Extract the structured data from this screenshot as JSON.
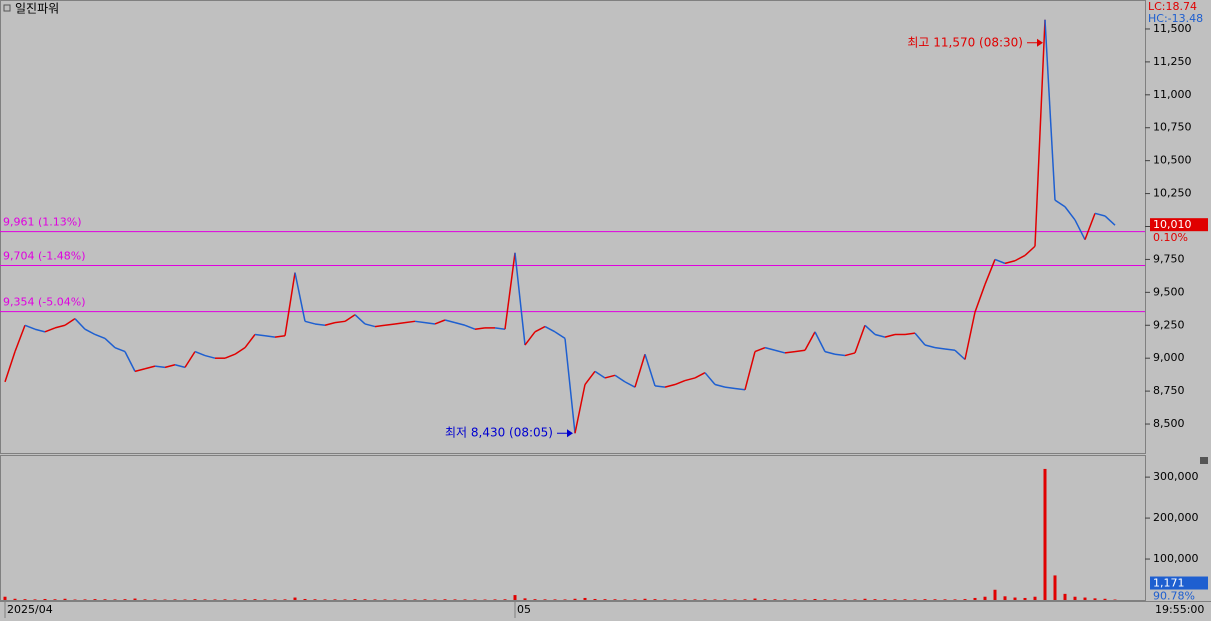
{
  "title": "일진파워",
  "lc_label": "LC:18.74",
  "hc_label": "HC:-13.48",
  "time_label": "19:55:00",
  "chart_data": [
    {
      "type": "line",
      "categories": [
        "2025/04",
        null,
        null,
        null,
        null,
        null,
        null,
        null,
        null,
        null,
        null,
        null,
        null,
        null,
        null,
        null,
        null,
        null,
        null,
        null,
        null,
        null,
        null,
        null,
        null,
        null,
        null,
        null,
        null,
        null,
        null,
        null,
        null,
        null,
        null,
        null,
        null,
        null,
        null,
        null,
        null,
        null,
        null,
        null,
        null,
        null,
        null,
        null,
        null,
        null,
        null,
        "05",
        null,
        null,
        null,
        null,
        null,
        null,
        null,
        null,
        null,
        null,
        null,
        null,
        null,
        null,
        null,
        null,
        null,
        null,
        null,
        null,
        null,
        null,
        null,
        null,
        null,
        null,
        null,
        null,
        null,
        null,
        null,
        null,
        null,
        null,
        null,
        null,
        null,
        null,
        null,
        null,
        null,
        null,
        null,
        null,
        null,
        null,
        null,
        null,
        null,
        null,
        null,
        null,
        null,
        null,
        null,
        null,
        null,
        null,
        null,
        null
      ],
      "values": [
        8820,
        9050,
        9250,
        9220,
        9200,
        9230,
        9250,
        9300,
        9220,
        9180,
        9150,
        9080,
        9050,
        8900,
        8920,
        8940,
        8930,
        8950,
        8930,
        9050,
        9020,
        9000,
        9000,
        9030,
        9080,
        9180,
        9170,
        9160,
        9170,
        9650,
        9280,
        9260,
        9250,
        9270,
        9280,
        9330,
        9260,
        9240,
        9250,
        9260,
        9270,
        9280,
        9270,
        9260,
        9290,
        9270,
        9250,
        9220,
        9230,
        9230,
        9220,
        9800,
        9100,
        9200,
        9240,
        9200,
        9150,
        8430,
        8800,
        8900,
        8850,
        8870,
        8820,
        8780,
        9030,
        8790,
        8780,
        8800,
        8830,
        8850,
        8890,
        8800,
        8780,
        8770,
        8760,
        9050,
        9080,
        9060,
        9040,
        9050,
        9060,
        9200,
        9050,
        9030,
        9020,
        9040,
        9250,
        9180,
        9160,
        9180,
        9180,
        9190,
        9100,
        9080,
        9070,
        9060,
        8990,
        9350,
        9560,
        9750,
        9720,
        9740,
        9780,
        9850,
        11570,
        10200,
        10150,
        10050,
        9900,
        10100,
        10080,
        10010
      ],
      "up_color": "#e00000",
      "down_color": "#1e5fd0",
      "ylim": [
        8280,
        11720
      ],
      "yticks": [
        {
          "value": 8500,
          "label": "8,500"
        },
        {
          "value": 8750,
          "label": "8,750"
        },
        {
          "value": 9000,
          "label": "9,000"
        },
        {
          "value": 9250,
          "label": "9,250"
        },
        {
          "value": 9500,
          "label": "9,500"
        },
        {
          "value": 9750,
          "label": "9,750"
        },
        {
          "value": 10000,
          "label": "10,000"
        },
        {
          "value": 10250,
          "label": "10,250"
        },
        {
          "value": 10500,
          "label": "10,500"
        },
        {
          "value": 10750,
          "label": "10,750"
        },
        {
          "value": 11000,
          "label": "11,000"
        },
        {
          "value": 11250,
          "label": "11,250"
        },
        {
          "value": 11500,
          "label": "11,500"
        }
      ],
      "reference_lines": [
        {
          "value": 9961,
          "label": "9,961 (1.13%)"
        },
        {
          "value": 9704,
          "label": "9,704 (-1.48%)"
        },
        {
          "value": 9354,
          "label": "9,354 (-5.04%)"
        }
      ],
      "reference_color": "#e000e0",
      "last_label": {
        "value": 10010,
        "label": "10,010"
      },
      "change_label": "0.10%",
      "annotations": [
        {
          "text": "최고 11,570 (08:30)",
          "value": 11570,
          "color": "#e00000"
        },
        {
          "text": "최저 8,430 (08:05)",
          "value": 8430,
          "color": "#0000d0"
        }
      ]
    },
    {
      "type": "bar",
      "values": [
        8000,
        3000,
        2000,
        1500,
        2500,
        1800,
        3000,
        1200,
        1500,
        2200,
        1800,
        1500,
        2000,
        3500,
        1600,
        1400,
        1200,
        1500,
        1300,
        2000,
        1500,
        1400,
        1600,
        1300,
        1800,
        2000,
        1500,
        1400,
        1600,
        6000,
        2500,
        1800,
        1500,
        1600,
        1400,
        2200,
        1800,
        1500,
        1400,
        1300,
        1500,
        1400,
        1600,
        1300,
        1800,
        1500,
        1400,
        1300,
        1200,
        1500,
        1800,
        12000,
        4000,
        2000,
        1600,
        1500,
        1400,
        3000,
        5000,
        2500,
        2000,
        1800,
        1500,
        1600,
        3000,
        2000,
        1500,
        1400,
        1600,
        1500,
        1600,
        1400,
        1500,
        1300,
        1600,
        3500,
        2000,
        1800,
        1500,
        1600,
        1500,
        2500,
        1800,
        1600,
        1500,
        1400,
        3000,
        2000,
        1800,
        1600,
        1700,
        1500,
        2000,
        1800,
        1600,
        1500,
        2200,
        5000,
        8000,
        25000,
        9000,
        6000,
        5000,
        8000,
        320000,
        60000,
        15000,
        8000,
        6000,
        4000,
        3000,
        1171
      ],
      "color": "#e00000",
      "ylim": [
        0,
        354000
      ],
      "yticks": [
        {
          "value": 100000,
          "label": "100,000"
        },
        {
          "value": 200000,
          "label": "200,000"
        },
        {
          "value": 300000,
          "label": "300,000"
        }
      ],
      "last_label": {
        "value": 1171,
        "label": "1,171"
      },
      "ratio_label": "90.78%"
    }
  ]
}
